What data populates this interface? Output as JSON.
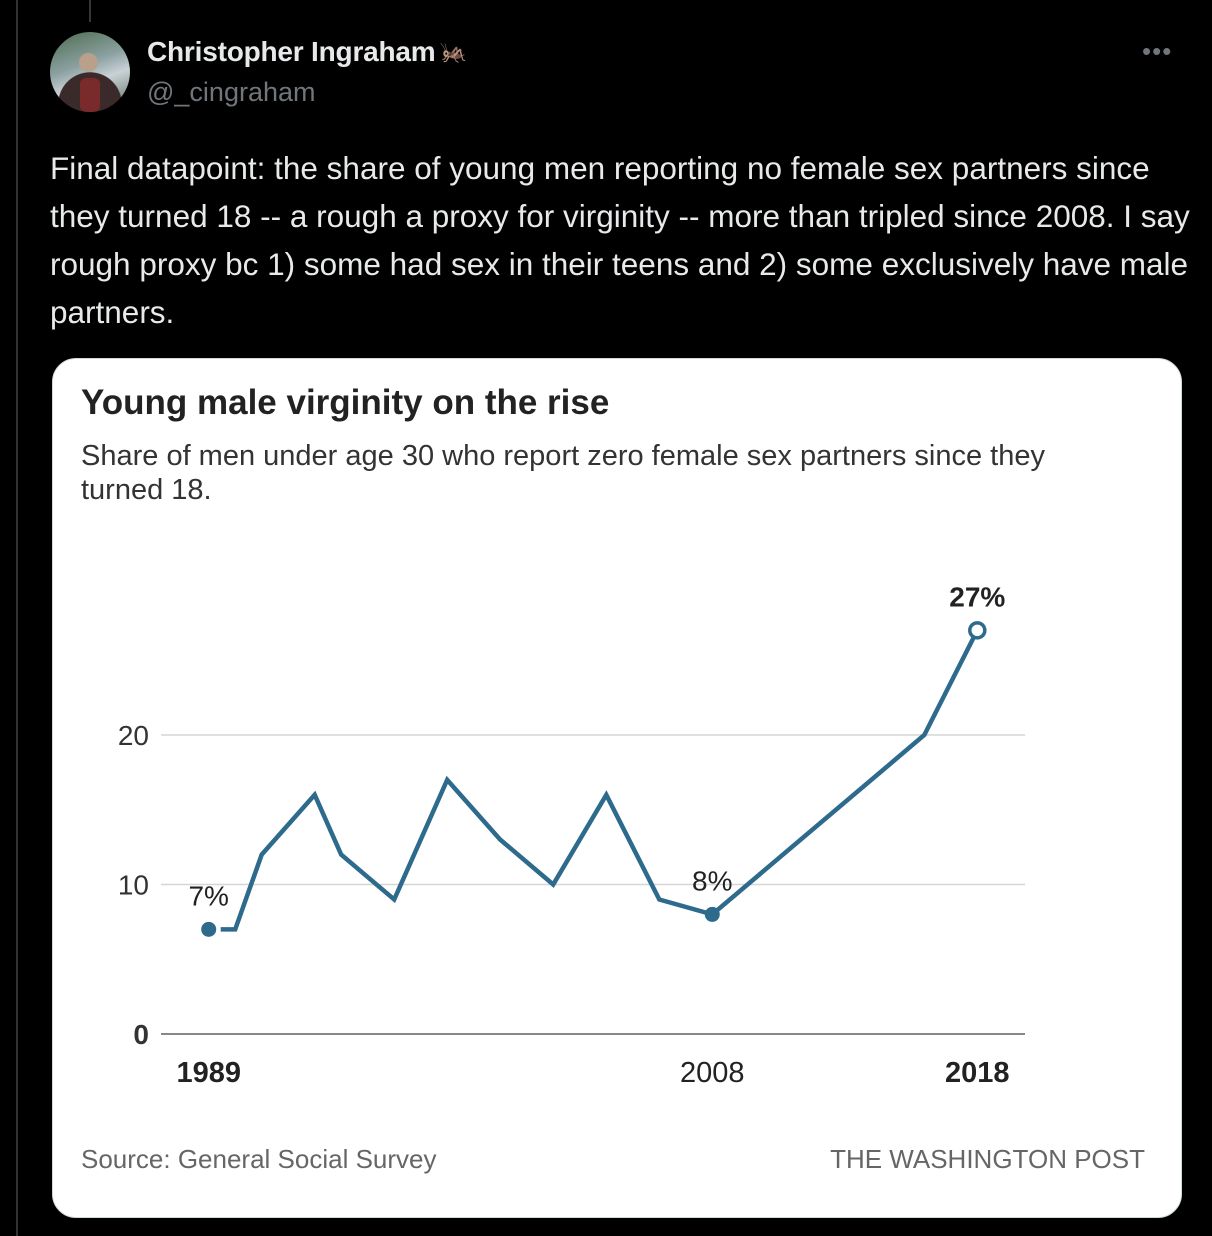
{
  "tweet": {
    "author_name": "Christopher Ingraham",
    "author_badge_icon": "cricket-emoji-icon",
    "handle": "@_cingraham",
    "more_icon": "more-icon",
    "text": "Final datapoint: the share of young men reporting no female sex partners since they turned 18 -- a rough a proxy for virginity -- more than tripled since 2008. I say rough proxy bc 1) some had sex in their teens and 2) some exclusively have male partners."
  },
  "card": {
    "source": "Source: General Social Survey",
    "credit": "THE WASHINGTON POST"
  },
  "chart_data": {
    "type": "line",
    "title": "Young male virginity on the rise",
    "subtitle": "Share of men under age 30 who report zero female sex partners since they turned 18.",
    "xlabel": "",
    "ylabel": "",
    "x": [
      1989,
      1990,
      1991,
      1993,
      1994,
      1996,
      1998,
      2000,
      2002,
      2004,
      2006,
      2008,
      2018
    ],
    "series": [
      {
        "values": [
          7,
          7,
          12,
          16,
          12,
          9,
          17,
          13,
          10,
          16,
          9,
          8,
          27
        ],
        "color": "#2e6a8c"
      }
    ],
    "line_vertices_between_2008_and_2018": [
      {
        "x": 2016,
        "y": 20
      }
    ],
    "xlim": [
      1987.2,
      2019.8
    ],
    "ylim": [
      0,
      30
    ],
    "yticks": [
      0,
      10,
      20
    ],
    "ytick_labels": [
      "0",
      "10",
      "20"
    ],
    "xticks": [
      1989,
      2008,
      2018
    ],
    "xtick_labels": [
      "1989",
      "2008",
      "2018"
    ],
    "data_labels": [
      {
        "x": 1989,
        "y": 7,
        "text": "7%",
        "bold": false
      },
      {
        "x": 2008,
        "y": 8,
        "text": "8%",
        "bold": false
      },
      {
        "x": 2018,
        "y": 27,
        "text": "27%",
        "bold": true
      }
    ],
    "grid": true,
    "legend": "none"
  }
}
